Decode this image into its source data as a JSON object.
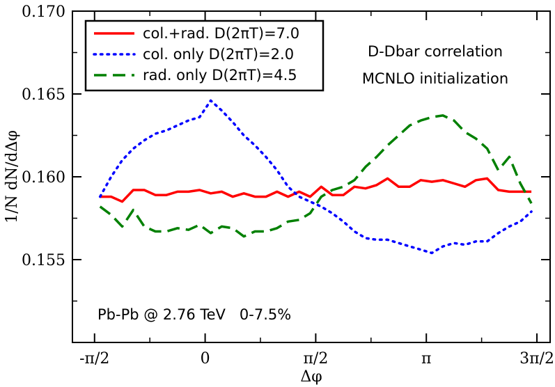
{
  "chart_data": {
    "type": "line",
    "title": "",
    "xlabel": "Δφ",
    "ylabel": "1/N dN/dΔφ",
    "xlim": [
      -1.885,
      4.9
    ],
    "ylim": [
      0.15,
      0.17
    ],
    "x_ticks": [
      {
        "value": -1.5708,
        "label": "-π/2"
      },
      {
        "value": 0,
        "label": "0"
      },
      {
        "value": 1.5708,
        "label": "π/2"
      },
      {
        "value": 3.1416,
        "label": "π"
      },
      {
        "value": 4.7124,
        "label": "3π/2"
      }
    ],
    "y_ticks": [
      {
        "value": 0.155,
        "label": "0.155"
      },
      {
        "value": 0.16,
        "label": "0.160"
      },
      {
        "value": 0.165,
        "label": "0.165"
      },
      {
        "value": 0.17,
        "label": "0.170"
      }
    ],
    "annotations": [
      "D-Dbar correlation",
      "MCNLO initialization",
      "Pb-Pb @ 2.76 TeV   0-7.5%"
    ],
    "legend_position": "top-left",
    "series": [
      {
        "name": "col.+rad. D(2πT)=7.0",
        "color": "#ff0000",
        "style": "solid",
        "x": [
          -1.492,
          -1.335,
          -1.178,
          -1.021,
          -0.864,
          -0.707,
          -0.55,
          -0.393,
          -0.236,
          -0.079,
          0.079,
          0.236,
          0.393,
          0.55,
          0.707,
          0.864,
          1.021,
          1.178,
          1.335,
          1.492,
          1.649,
          1.806,
          1.963,
          2.121,
          2.278,
          2.435,
          2.592,
          2.749,
          2.906,
          3.063,
          3.22,
          3.377,
          3.534,
          3.691,
          3.848,
          4.006,
          4.163,
          4.32,
          4.477,
          4.634
        ],
        "values": [
          0.1588,
          0.1588,
          0.1585,
          0.1592,
          0.1592,
          0.1589,
          0.1589,
          0.1591,
          0.1591,
          0.1592,
          0.159,
          0.1591,
          0.1588,
          0.159,
          0.1588,
          0.1588,
          0.1591,
          0.1588,
          0.1591,
          0.1588,
          0.1594,
          0.1589,
          0.1589,
          0.1594,
          0.1593,
          0.1595,
          0.1599,
          0.1594,
          0.1594,
          0.1598,
          0.1597,
          0.1598,
          0.1596,
          0.1594,
          0.1598,
          0.1599,
          0.1592,
          0.1591,
          0.1591,
          0.1591
        ]
      },
      {
        "name": "col. only D(2πT)=2.0",
        "color": "#0000ff",
        "style": "dotted",
        "x": [
          -1.492,
          -1.335,
          -1.178,
          -1.021,
          -0.864,
          -0.707,
          -0.55,
          -0.393,
          -0.236,
          -0.079,
          0.079,
          0.236,
          0.393,
          0.55,
          0.707,
          0.864,
          1.021,
          1.178,
          1.335,
          1.492,
          1.649,
          1.806,
          1.963,
          2.121,
          2.278,
          2.435,
          2.592,
          2.749,
          2.906,
          3.063,
          3.22,
          3.377,
          3.534,
          3.691,
          3.848,
          4.006,
          4.163,
          4.32,
          4.477,
          4.634
        ],
        "values": [
          0.1588,
          0.16,
          0.161,
          0.1617,
          0.1622,
          0.1626,
          0.1628,
          0.1631,
          0.1634,
          0.1636,
          0.1646,
          0.164,
          0.1633,
          0.1625,
          0.1619,
          0.1612,
          0.1604,
          0.1594,
          0.1588,
          0.1585,
          0.1582,
          0.1578,
          0.1573,
          0.1567,
          0.1563,
          0.1562,
          0.1562,
          0.156,
          0.1558,
          0.1556,
          0.1554,
          0.1558,
          0.156,
          0.1559,
          0.1561,
          0.1561,
          0.1566,
          0.157,
          0.1573,
          0.1579
        ]
      },
      {
        "name": "rad. only D(2πT)=4.5",
        "color": "#008000",
        "style": "dashed",
        "x": [
          -1.492,
          -1.335,
          -1.178,
          -1.021,
          -0.864,
          -0.707,
          -0.55,
          -0.393,
          -0.236,
          -0.079,
          0.079,
          0.236,
          0.393,
          0.55,
          0.707,
          0.864,
          1.021,
          1.178,
          1.335,
          1.492,
          1.649,
          1.806,
          1.963,
          2.121,
          2.278,
          2.435,
          2.592,
          2.749,
          2.906,
          3.063,
          3.22,
          3.377,
          3.534,
          3.691,
          3.848,
          4.006,
          4.163,
          4.32,
          4.477,
          4.634
        ],
        "values": [
          0.1582,
          0.1577,
          0.157,
          0.158,
          0.157,
          0.1567,
          0.1567,
          0.1569,
          0.1568,
          0.1571,
          0.1566,
          0.157,
          0.1569,
          0.1564,
          0.1567,
          0.1567,
          0.1569,
          0.1573,
          0.1574,
          0.1578,
          0.1588,
          0.1592,
          0.1594,
          0.1598,
          0.1606,
          0.1612,
          0.1619,
          0.1625,
          0.1631,
          0.1634,
          0.1636,
          0.1637,
          0.1634,
          0.1627,
          0.1623,
          0.1617,
          0.1604,
          0.1612,
          0.1596,
          0.1584
        ]
      }
    ]
  }
}
